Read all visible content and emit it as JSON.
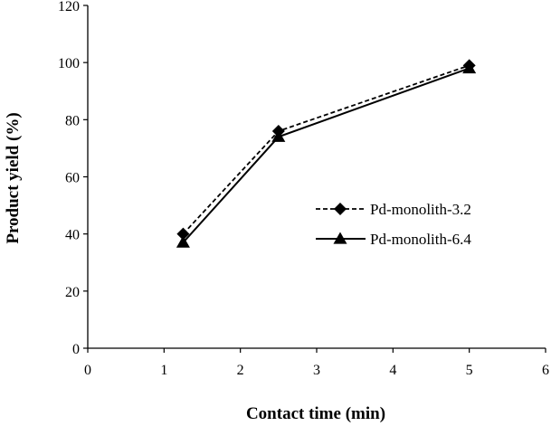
{
  "chart_data": {
    "type": "line",
    "xlabel": "Contact time (min)",
    "ylabel": "Product yield (%)",
    "xlim": [
      0,
      6
    ],
    "ylim": [
      0,
      120
    ],
    "xticks": [
      "0",
      "1",
      "2",
      "3",
      "4",
      "5",
      "6"
    ],
    "yticks": [
      "0",
      "20",
      "40",
      "60",
      "80",
      "100",
      "120"
    ],
    "grid": false,
    "legend_position": "center-right",
    "series": [
      {
        "name": "Pd-monolith-3.2",
        "x": [
          1.25,
          2.5,
          5
        ],
        "y": [
          40,
          76,
          99
        ],
        "marker": "diamond",
        "line_style": "dashed",
        "color": "#000000"
      },
      {
        "name": "Pd-monolith-6.4",
        "x": [
          1.25,
          2.5,
          5
        ],
        "y": [
          37,
          74,
          98
        ],
        "marker": "triangle",
        "line_style": "solid",
        "color": "#000000"
      }
    ]
  }
}
